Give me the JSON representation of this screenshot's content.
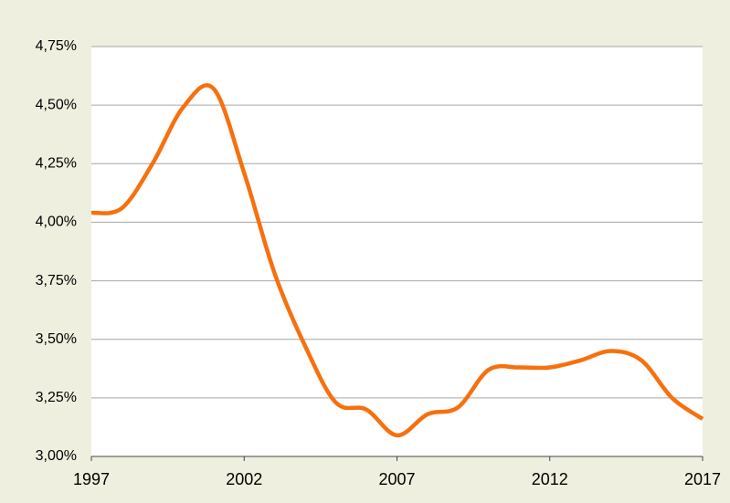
{
  "chart_data": {
    "type": "line",
    "x": [
      1997,
      1998,
      1999,
      2000,
      2001,
      2002,
      2003,
      2004,
      2005,
      2006,
      2007,
      2008,
      2009,
      2010,
      2011,
      2012,
      2013,
      2014,
      2015,
      2016,
      2017
    ],
    "series": [
      {
        "name": null,
        "color": "#f7700e",
        "values": [
          4.04,
          4.06,
          4.25,
          4.49,
          4.57,
          4.21,
          3.78,
          3.47,
          3.23,
          3.2,
          3.09,
          3.18,
          3.21,
          3.37,
          3.38,
          3.38,
          3.41,
          3.45,
          3.41,
          3.25,
          3.16
        ]
      }
    ],
    "xlim": [
      1997,
      2017
    ],
    "xticks": [
      1997,
      2002,
      2007,
      2012,
      2017
    ],
    "ylim": [
      3,
      4.75
    ],
    "yticks": [
      {
        "value": 3,
        "label": "3,00%"
      },
      {
        "value": 3.25,
        "label": "3,25%"
      },
      {
        "value": 3.5,
        "label": "3,50%"
      },
      {
        "value": 3.75,
        "label": "3,75%"
      },
      {
        "value": 4,
        "label": "4,00%"
      },
      {
        "value": 4.25,
        "label": "4,25%"
      },
      {
        "value": 4.5,
        "label": "4,50%"
      },
      {
        "value": 4.75,
        "label": "4,75%"
      }
    ],
    "grid": true
  }
}
